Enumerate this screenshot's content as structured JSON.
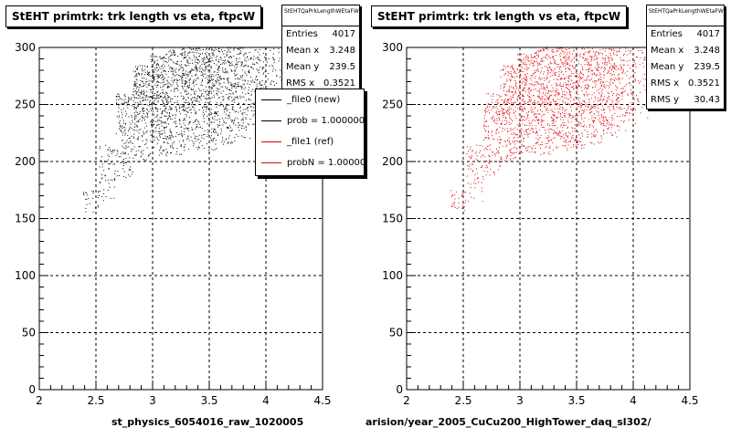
{
  "colors": {
    "left_points": "#000000",
    "right_points": "#e00000",
    "legend_ref": "#e00000"
  },
  "panels": [
    {
      "title": "StEHT primtrk: trk length vs eta, ftpcW",
      "stats": {
        "name": "StEHTQaPrkLengthWEtaFW",
        "rows": [
          {
            "label": "Entries",
            "value": "4017"
          },
          {
            "label": "Mean x",
            "value": "3.248"
          },
          {
            "label": "Mean y",
            "value": "239.5"
          },
          {
            "label": "RMS x",
            "value": "0.3521"
          }
        ]
      },
      "xname": "st_physics_6054016_raw_1020005"
    },
    {
      "title": "StEHT primtrk: trk length vs eta, ftpcW",
      "stats": {
        "name": "StEHTQaPrkLengthWEtaFW",
        "rows": [
          {
            "label": "Entries",
            "value": "4017"
          },
          {
            "label": "Mean x",
            "value": "3.248"
          },
          {
            "label": "Mean y",
            "value": "239.5"
          },
          {
            "label": "RMS x",
            "value": "0.3521"
          },
          {
            "label": "RMS y",
            "value": "30.43"
          }
        ]
      },
      "xname": "arision/year_2005_CuCu200_HighTower_daq_sl302/"
    }
  ],
  "legend": {
    "entries": [
      {
        "label": "_file0 (new)",
        "color": "#000000"
      },
      {
        "label": "prob = 1.000000",
        "color": "#000000"
      },
      {
        "label": "_file1 (ref)",
        "color": "#e00000"
      },
      {
        "label": "probN = 1.000000",
        "color": "#e00000"
      }
    ]
  },
  "chart_data": [
    {
      "type": "scatter",
      "title": "StEHT primtrk: trk length vs eta, ftpcW",
      "xlabel": "st_physics_6054016_raw_1020005",
      "ylabel": "",
      "xlim": [
        2,
        4.5
      ],
      "ylim": [
        0,
        300
      ],
      "xticks": [
        "2",
        "2.5",
        "3",
        "3.5",
        "4",
        "4.5"
      ],
      "yticks": [
        "0",
        "50",
        "100",
        "150",
        "200",
        "250",
        "300"
      ],
      "grid": true,
      "entries": 4017,
      "mean_x": 3.248,
      "mean_y": 239.5,
      "rms_x": 0.3521,
      "density_profile": [
        {
          "x": 2.45,
          "y_min": 155,
          "y_max": 175,
          "weight": 1
        },
        {
          "x": 2.6,
          "y_min": 165,
          "y_max": 215,
          "weight": 2
        },
        {
          "x": 2.75,
          "y_min": 185,
          "y_max": 260,
          "weight": 5
        },
        {
          "x": 2.9,
          "y_min": 200,
          "y_max": 285,
          "weight": 8
        },
        {
          "x": 3.05,
          "y_min": 205,
          "y_max": 295,
          "weight": 9
        },
        {
          "x": 3.2,
          "y_min": 205,
          "y_max": 300,
          "weight": 9
        },
        {
          "x": 3.35,
          "y_min": 210,
          "y_max": 300,
          "weight": 9
        },
        {
          "x": 3.5,
          "y_min": 210,
          "y_max": 300,
          "weight": 8
        },
        {
          "x": 3.65,
          "y_min": 215,
          "y_max": 300,
          "weight": 7
        },
        {
          "x": 3.8,
          "y_min": 220,
          "y_max": 300,
          "weight": 6
        },
        {
          "x": 3.95,
          "y_min": 225,
          "y_max": 300,
          "weight": 4
        },
        {
          "x": 4.1,
          "y_min": 235,
          "y_max": 300,
          "weight": 2
        }
      ],
      "point_color": "#000000",
      "n_display_points": 2200
    },
    {
      "type": "scatter",
      "title": "StEHT primtrk: trk length vs eta, ftpcW",
      "xlabel": "arision/year_2005_CuCu200_HighTower_daq_sl302/",
      "ylabel": "",
      "xlim": [
        2,
        4.5
      ],
      "ylim": [
        0,
        300
      ],
      "xticks": [
        "2",
        "2.5",
        "3",
        "3.5",
        "4",
        "4.5"
      ],
      "yticks": [
        "0",
        "50",
        "100",
        "150",
        "200",
        "250",
        "300"
      ],
      "grid": true,
      "entries": 4017,
      "mean_x": 3.248,
      "mean_y": 239.5,
      "rms_x": 0.3521,
      "rms_y": 30.43,
      "density_profile": [
        {
          "x": 2.45,
          "y_min": 155,
          "y_max": 175,
          "weight": 1
        },
        {
          "x": 2.6,
          "y_min": 165,
          "y_max": 215,
          "weight": 2
        },
        {
          "x": 2.75,
          "y_min": 185,
          "y_max": 260,
          "weight": 5
        },
        {
          "x": 2.9,
          "y_min": 200,
          "y_max": 285,
          "weight": 8
        },
        {
          "x": 3.05,
          "y_min": 205,
          "y_max": 295,
          "weight": 9
        },
        {
          "x": 3.2,
          "y_min": 205,
          "y_max": 300,
          "weight": 9
        },
        {
          "x": 3.35,
          "y_min": 210,
          "y_max": 300,
          "weight": 9
        },
        {
          "x": 3.5,
          "y_min": 210,
          "y_max": 300,
          "weight": 8
        },
        {
          "x": 3.65,
          "y_min": 215,
          "y_max": 300,
          "weight": 7
        },
        {
          "x": 3.8,
          "y_min": 220,
          "y_max": 300,
          "weight": 6
        },
        {
          "x": 3.95,
          "y_min": 225,
          "y_max": 300,
          "weight": 4
        },
        {
          "x": 4.1,
          "y_min": 235,
          "y_max": 300,
          "weight": 2
        }
      ],
      "point_color": "#e00000",
      "n_display_points": 2200
    }
  ]
}
